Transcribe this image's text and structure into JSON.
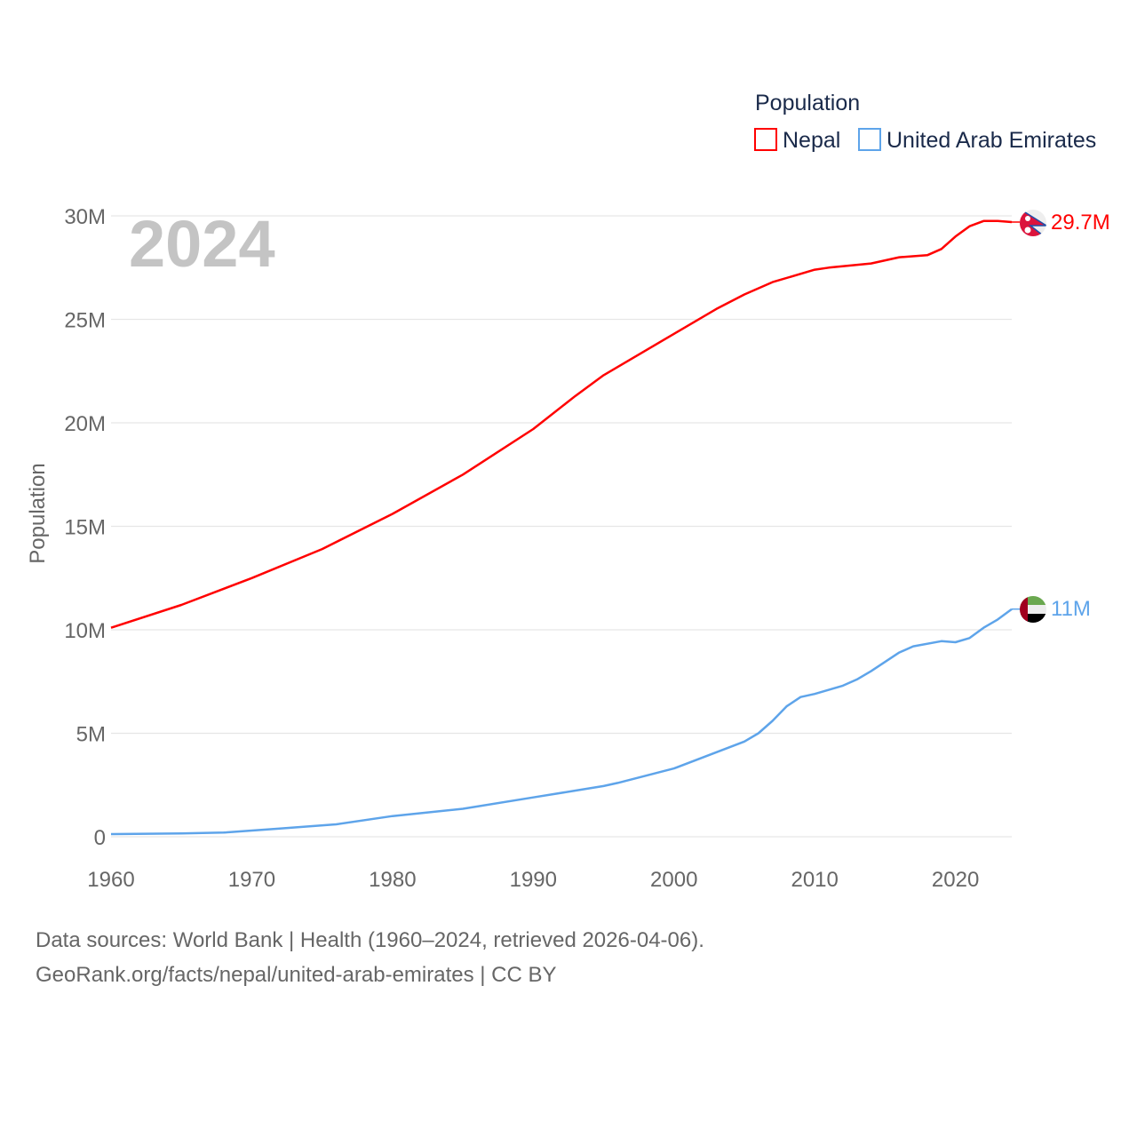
{
  "chart_data": {
    "type": "line",
    "year_label": "2024",
    "xlabel": "",
    "ylabel": "Population",
    "xlim": [
      1960,
      2024
    ],
    "ylim": [
      0,
      30000000
    ],
    "x_ticks": [
      "1960",
      "1970",
      "1980",
      "1990",
      "2000",
      "2010",
      "2020"
    ],
    "y_ticks": [
      {
        "v": 0,
        "label": "0"
      },
      {
        "v": 5000000,
        "label": "5M"
      },
      {
        "v": 10000000,
        "label": "10M"
      },
      {
        "v": 15000000,
        "label": "15M"
      },
      {
        "v": 20000000,
        "label": "20M"
      },
      {
        "v": 25000000,
        "label": "25M"
      },
      {
        "v": 30000000,
        "label": "30M"
      }
    ],
    "grid": true,
    "legend": {
      "title": "Population",
      "placement": "top-right"
    },
    "series": [
      {
        "name": "Nepal",
        "color": "#ff0000",
        "end_label": "29.7M",
        "flag": "nepal-flag",
        "points": [
          [
            1960,
            10.1
          ],
          [
            1965,
            11.2
          ],
          [
            1970,
            12.5
          ],
          [
            1975,
            13.9
          ],
          [
            1980,
            15.6
          ],
          [
            1985,
            17.5
          ],
          [
            1990,
            19.7
          ],
          [
            1993,
            21.3
          ],
          [
            1995,
            22.3
          ],
          [
            2000,
            24.3
          ],
          [
            2003,
            25.5
          ],
          [
            2005,
            26.2
          ],
          [
            2007,
            26.8
          ],
          [
            2010,
            27.4
          ],
          [
            2011,
            27.5
          ],
          [
            2014,
            27.7
          ],
          [
            2016,
            28.0
          ],
          [
            2018,
            28.1
          ],
          [
            2019,
            28.4
          ],
          [
            2020,
            29.0
          ],
          [
            2021,
            29.5
          ],
          [
            2022,
            29.75
          ],
          [
            2023,
            29.75
          ],
          [
            2024,
            29.7
          ]
        ]
      },
      {
        "name": "United Arab Emirates",
        "color": "#5ea4ea",
        "end_label": "11M",
        "flag": "uae-flag",
        "points": [
          [
            1960,
            0.13
          ],
          [
            1965,
            0.16
          ],
          [
            1968,
            0.2
          ],
          [
            1972,
            0.4
          ],
          [
            1976,
            0.6
          ],
          [
            1980,
            1.0
          ],
          [
            1985,
            1.35
          ],
          [
            1990,
            1.9
          ],
          [
            1995,
            2.45
          ],
          [
            1996,
            2.6
          ],
          [
            2000,
            3.3
          ],
          [
            2005,
            4.6
          ],
          [
            2006,
            5.0
          ],
          [
            2007,
            5.6
          ],
          [
            2008,
            6.3
          ],
          [
            2009,
            6.75
          ],
          [
            2010,
            6.9
          ],
          [
            2012,
            7.3
          ],
          [
            2013,
            7.6
          ],
          [
            2014,
            8.0
          ],
          [
            2016,
            8.9
          ],
          [
            2017,
            9.2
          ],
          [
            2019,
            9.45
          ],
          [
            2020,
            9.4
          ],
          [
            2021,
            9.6
          ],
          [
            2022,
            10.1
          ],
          [
            2023,
            10.5
          ],
          [
            2024,
            11.0
          ]
        ]
      }
    ]
  },
  "footer": {
    "line1": "Data sources: World Bank | Health (1960–2024, retrieved 2026-04-06).",
    "line2": "GeoRank.org/facts/nepal/united-arab-emirates | CC BY"
  }
}
